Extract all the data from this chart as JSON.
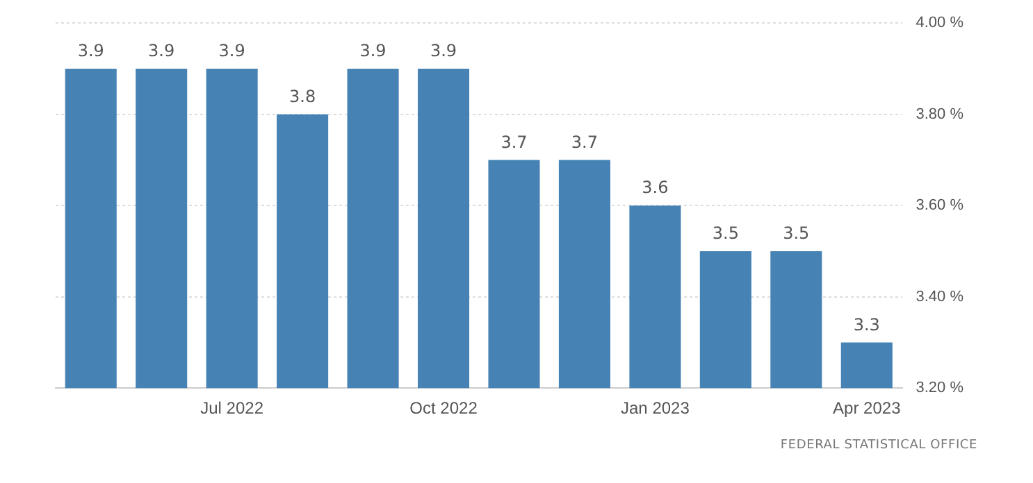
{
  "chart_data": {
    "type": "bar",
    "categories": [
      null,
      null,
      "Jul 2022",
      null,
      null,
      "Oct 2022",
      null,
      null,
      "Jan 2023",
      null,
      null,
      "Apr 2023"
    ],
    "values": [
      3.9,
      3.9,
      3.9,
      3.8,
      3.9,
      3.9,
      3.7,
      3.7,
      3.6,
      3.5,
      3.5,
      3.3
    ],
    "color": "#4682b4",
    "ylim": [
      3.2,
      4.0
    ],
    "yticks": [
      {
        "value": 3.2,
        "label": "3.20 %"
      },
      {
        "value": 3.4,
        "label": "3.40 %"
      },
      {
        "value": 3.6,
        "label": "3.60 %"
      },
      {
        "value": 3.8,
        "label": "3.80 %"
      },
      {
        "value": 4.0,
        "label": "4.00 %"
      }
    ],
    "grid": "y",
    "data_labels": true,
    "legend": false,
    "annotations": [
      "FEDERAL STATISTICAL OFFICE"
    ]
  }
}
